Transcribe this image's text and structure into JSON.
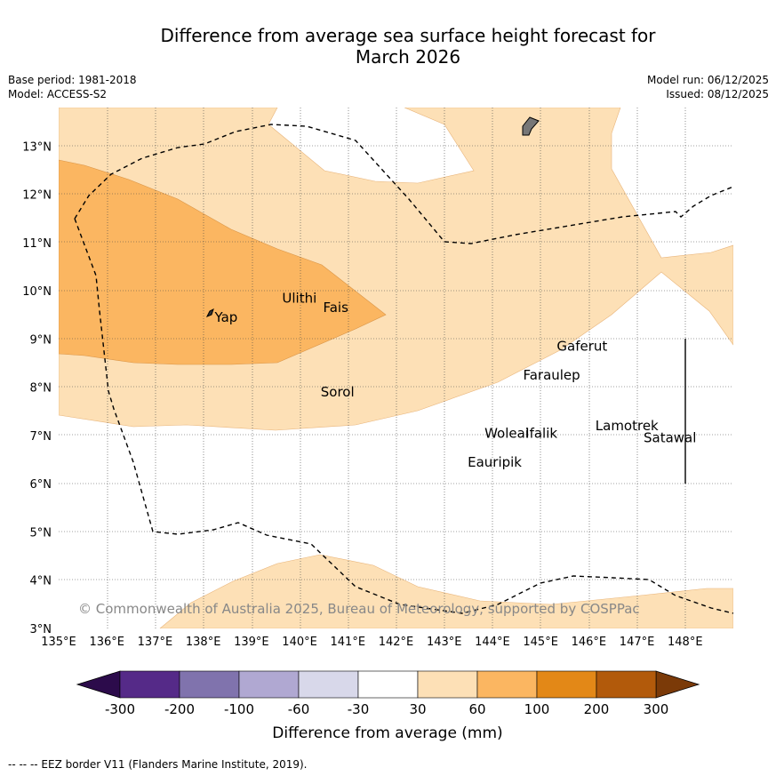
{
  "title_line1": "Difference from average sea surface height forecast for",
  "title_line2": "March 2026",
  "base_period": "Base period: 1981-2018",
  "model": "Model: ACCESS-S2",
  "model_run": "Model run: 06/12/2025",
  "issued": "Issued: 08/12/2025",
  "copyright": "© Commonwealth of Australia 2025, Bureau of Meteorology, supported by COSPPac",
  "footnote": "--  --  -- EEZ border V11 (Flanders Marine Institute, 2019).",
  "map": {
    "lon_range": [
      135,
      149
    ],
    "lat_range": [
      3,
      13.8
    ],
    "lon_ticks": [
      "135°E",
      "136°E",
      "137°E",
      "138°E",
      "139°E",
      "140°E",
      "141°E",
      "142°E",
      "143°E",
      "144°E",
      "145°E",
      "146°E",
      "147°E",
      "148°E"
    ],
    "lat_ticks": [
      "3°N",
      "4°N",
      "5°N",
      "6°N",
      "7°N",
      "8°N",
      "9°N",
      "10°N",
      "11°N",
      "12°N",
      "13°N"
    ],
    "places": [
      {
        "name": "Yap",
        "lon": 138.2,
        "lat": 9.45
      },
      {
        "name": "Ulithi",
        "lon": 139.6,
        "lat": 9.85
      },
      {
        "name": "Fais",
        "lon": 140.45,
        "lat": 9.65
      },
      {
        "name": "Sorol",
        "lon": 140.4,
        "lat": 7.9
      },
      {
        "name": "Gaferut",
        "lon": 145.3,
        "lat": 8.85
      },
      {
        "name": "Faraulep",
        "lon": 144.6,
        "lat": 8.25
      },
      {
        "name": "Woleai",
        "lon": 143.8,
        "lat": 7.05
      },
      {
        "name": "Ifalik",
        "lon": 144.65,
        "lat": 7.05
      },
      {
        "name": "Lamotrek",
        "lon": 146.1,
        "lat": 7.2
      },
      {
        "name": "Satawal",
        "lon": 147.1,
        "lat": 6.95
      },
      {
        "name": "Eauripik",
        "lon": 143.45,
        "lat": 6.45
      }
    ]
  },
  "colorbar": {
    "ticks": [
      "-300",
      "-200",
      "-100",
      "-60",
      "-30",
      "30",
      "60",
      "100",
      "200",
      "300"
    ],
    "colors": [
      "#552a88",
      "#8073ad",
      "#b0a8d2",
      "#d8d8ea",
      "#ffffff",
      "#fde0b6",
      "#fbb661",
      "#e38817",
      "#b25a0b"
    ],
    "under_color": "#2c0b4b",
    "over_color": "#7b3a08",
    "label": "Difference from average (mm)"
  }
}
